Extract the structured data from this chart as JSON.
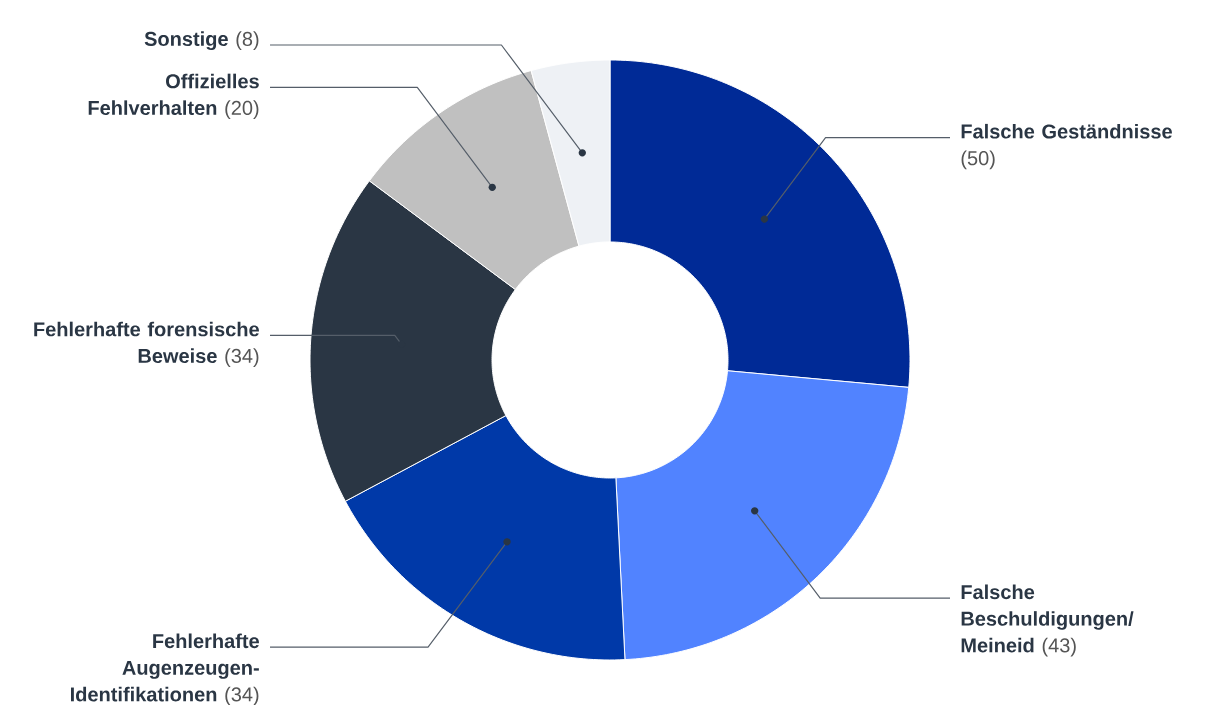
{
  "chart_data": {
    "type": "donut",
    "categories": [
      "Falsche Geständnisse",
      "Falsche Beschuldigungen/ Meineid",
      "Fehlerhafte Augenzeugen-Identifikationen",
      "Fehlerhafte forensische Beweise",
      "Offizielles Fehlverhalten",
      "Sonstige"
    ],
    "values": [
      50,
      43,
      34,
      34,
      20,
      8
    ],
    "value_labels": [
      "(50)",
      "(43)",
      "(34)",
      "(34)",
      "(20)",
      "(8)"
    ],
    "colors": [
      "#002a96",
      "#5183ff",
      "#0039a8",
      "#2a3644",
      "#c0c0c0",
      "#eef1f5"
    ]
  }
}
